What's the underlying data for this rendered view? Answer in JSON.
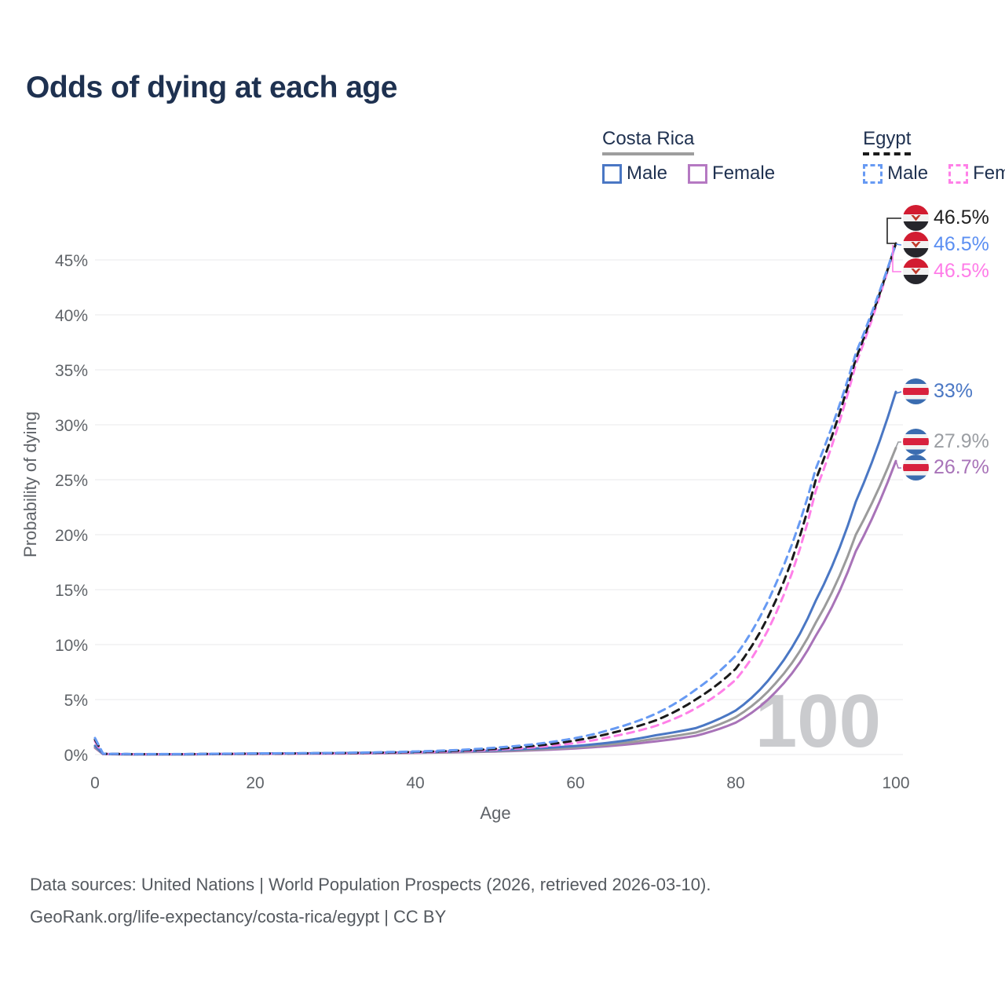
{
  "page": {
    "title": "Odds of dying at each age",
    "background": "#ffffff"
  },
  "watermark": "100",
  "legend": {
    "groups": [
      {
        "name": "Costa Rica",
        "line_style": "solid",
        "underline_color": "#9e9e9e",
        "items": [
          {
            "label": "Male",
            "color": "#4a77c4"
          },
          {
            "label": "Female",
            "color": "#b579c2"
          }
        ]
      },
      {
        "name": "Egypt",
        "line_style": "dashed",
        "underline_color": "#1a1a1a",
        "items": [
          {
            "label": "Male",
            "color": "#679af3"
          },
          {
            "label": "Female",
            "color": "#ff80e8"
          }
        ]
      }
    ]
  },
  "annotations": [
    {
      "series": "Egypt Both sexes",
      "label": "46.5%",
      "color": "#212121",
      "flag": "egypt"
    },
    {
      "series": "Egypt Male",
      "label": "46.5%",
      "color": "#5b8ff2",
      "flag": "egypt"
    },
    {
      "series": "Egypt Female",
      "label": "46.5%",
      "color": "#ff7ce8",
      "flag": "egypt"
    },
    {
      "series": "Costa Rica Male",
      "label": "33%",
      "color": "#4a77c4",
      "flag": "costa-rica"
    },
    {
      "series": "Costa Rica Both sexes",
      "label": "27.9%",
      "color": "#9b9ea3",
      "flag": "costa-rica"
    },
    {
      "series": "Costa Rica Female",
      "label": "26.7%",
      "color": "#a873b8",
      "flag": "costa-rica"
    }
  ],
  "footer": {
    "line1": "Data sources: United Nations | World Population Prospects (2026, retrieved 2026-03-10).",
    "line2": "GeoRank.org/life-expectancy/costa-rica/egypt | CC BY"
  },
  "chart_data": {
    "type": "line",
    "title": "Odds of dying at each age",
    "xlabel": "Age",
    "ylabel": "Probability of dying",
    "xlim": [
      0,
      100
    ],
    "ylim_pct": [
      0,
      47
    ],
    "x_ticks": [
      0,
      20,
      40,
      60,
      80,
      100
    ],
    "y_ticks_pct": [
      0,
      5,
      10,
      15,
      20,
      25,
      30,
      35,
      40,
      45
    ],
    "grid": "horizontal",
    "age_watermark": 100,
    "x": [
      0,
      1,
      5,
      10,
      15,
      20,
      25,
      30,
      35,
      40,
      45,
      50,
      55,
      60,
      65,
      70,
      75,
      80,
      85,
      90,
      95,
      100
    ],
    "series": [
      {
        "id": "cr-female",
        "name": "Costa Rica Female",
        "country": "Costa Rica",
        "sex": "Female",
        "style": "solid",
        "color": "#a873b8",
        "end_label": "26.7%",
        "values": [
          0.6,
          0.04,
          0.016,
          0.016,
          0.035,
          0.06,
          0.07,
          0.09,
          0.11,
          0.15,
          0.2,
          0.27,
          0.39,
          0.56,
          0.82,
          1.2,
          1.7,
          2.9,
          5.7,
          10.8,
          18.5,
          26.7
        ]
      },
      {
        "id": "cr-both",
        "name": "Costa Rica Both sexes",
        "country": "Costa Rica",
        "sex": "Both",
        "style": "solid",
        "color": "#9b9b9b",
        "end_label": "27.9%",
        "values": [
          0.7,
          0.045,
          0.018,
          0.018,
          0.04,
          0.07,
          0.09,
          0.11,
          0.13,
          0.17,
          0.23,
          0.32,
          0.46,
          0.66,
          0.97,
          1.45,
          2.0,
          3.4,
          6.5,
          12.0,
          20.0,
          27.9
        ]
      },
      {
        "id": "cr-male",
        "name": "Costa Rica Male",
        "country": "Costa Rica",
        "sex": "Male",
        "style": "solid",
        "color": "#4a77c4",
        "end_label": "33%",
        "values": [
          0.8,
          0.05,
          0.02,
          0.02,
          0.05,
          0.09,
          0.11,
          0.13,
          0.16,
          0.21,
          0.28,
          0.38,
          0.55,
          0.78,
          1.15,
          1.75,
          2.4,
          4.0,
          7.6,
          14.0,
          23.0,
          33.0
        ]
      },
      {
        "id": "egypt-female",
        "name": "Egypt Female",
        "country": "Egypt",
        "sex": "Female",
        "style": "dashed",
        "color": "#ff80e8",
        "end_label": "46.5%",
        "values": [
          1.2,
          0.06,
          0.03,
          0.03,
          0.05,
          0.07,
          0.08,
          0.1,
          0.14,
          0.2,
          0.29,
          0.44,
          0.67,
          1.05,
          1.7,
          2.6,
          4.2,
          6.8,
          12.8,
          24.0,
          35.5,
          46.5
        ]
      },
      {
        "id": "egypt-both",
        "name": "Egypt Both sexes",
        "country": "Egypt",
        "sex": "Both",
        "style": "dashed",
        "color": "#1a1a1a",
        "end_label": "46.5%",
        "values": [
          1.35,
          0.07,
          0.035,
          0.035,
          0.06,
          0.08,
          0.1,
          0.13,
          0.17,
          0.24,
          0.34,
          0.52,
          0.8,
          1.28,
          2.05,
          3.1,
          5.0,
          7.8,
          14.0,
          25.0,
          36.0,
          46.5
        ]
      },
      {
        "id": "egypt-male",
        "name": "Egypt Male",
        "country": "Egypt",
        "sex": "Male",
        "style": "dashed",
        "color": "#679af3",
        "end_label": "46.5%",
        "values": [
          1.5,
          0.08,
          0.04,
          0.04,
          0.07,
          0.1,
          0.12,
          0.15,
          0.2,
          0.28,
          0.4,
          0.62,
          0.95,
          1.5,
          2.4,
          3.7,
          5.9,
          9.0,
          15.5,
          26.0,
          36.5,
          46.5
        ]
      }
    ]
  }
}
